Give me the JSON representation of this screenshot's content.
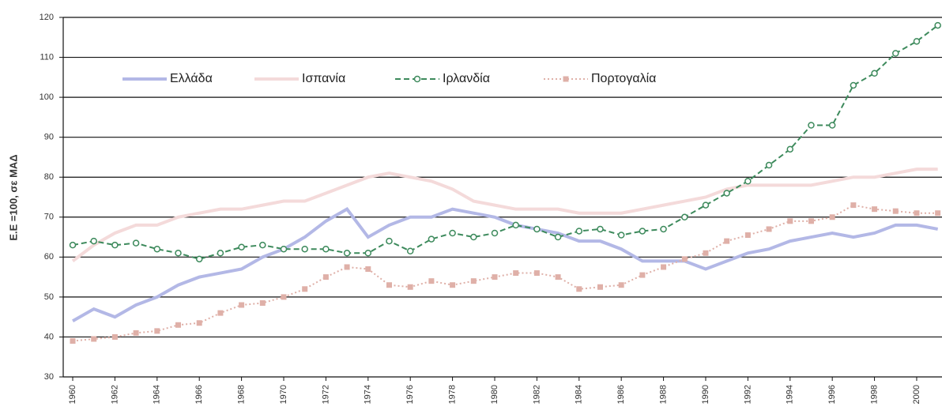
{
  "chart_data": {
    "type": "line",
    "y_label": "Ε.Ε =100, σε ΜΑΔ",
    "x": [
      1960,
      1961,
      1962,
      1963,
      1964,
      1965,
      1966,
      1967,
      1968,
      1969,
      1970,
      1971,
      1972,
      1973,
      1974,
      1975,
      1976,
      1977,
      1978,
      1979,
      1980,
      1981,
      1982,
      1983,
      1984,
      1985,
      1986,
      1987,
      1988,
      1989,
      1990,
      1991,
      1992,
      1993,
      1994,
      1995,
      1996,
      1997,
      1998,
      1999,
      2000,
      2001
    ],
    "xlim": [
      1959.55,
      2001.2
    ],
    "xticks": [
      1960,
      1962,
      1964,
      1966,
      1968,
      1970,
      1972,
      1974,
      1976,
      1978,
      1980,
      1982,
      1984,
      1986,
      1988,
      1990,
      1992,
      1994,
      1996,
      1998,
      2000
    ],
    "ylim": [
      30,
      120
    ],
    "yticks": [
      30,
      40,
      50,
      60,
      70,
      80,
      90,
      100,
      110,
      120
    ],
    "grid": true,
    "legend": "top-left",
    "series": [
      {
        "name": "Ελλάδα",
        "color": "#b3b8e6",
        "style": "solid",
        "marker": "none",
        "values": [
          44,
          47,
          45,
          48,
          50,
          53,
          55,
          56,
          57,
          60,
          62,
          65,
          69,
          72,
          65,
          68,
          70,
          70,
          72,
          71,
          70,
          68,
          67,
          66,
          64,
          64,
          62,
          59,
          59,
          59,
          57,
          59,
          61,
          62,
          64,
          65,
          66,
          65,
          66,
          68,
          68,
          67
        ]
      },
      {
        "name": "Ισπανία",
        "color": "#f4dada",
        "style": "solid",
        "marker": "none",
        "values": [
          59,
          63,
          66,
          68,
          68,
          70,
          71,
          72,
          72,
          73,
          74,
          74,
          76,
          78,
          80,
          81,
          80,
          79,
          77,
          74,
          73,
          72,
          72,
          72,
          71,
          71,
          71,
          72,
          73,
          74,
          75,
          77,
          78,
          78,
          78,
          78,
          79,
          80,
          80,
          81,
          82,
          82
        ]
      },
      {
        "name": "Ιρλανδία",
        "color": "#3d8a5c",
        "style": "dashed",
        "marker": "circle",
        "values": [
          63,
          64,
          63,
          63.5,
          62,
          61,
          59.5,
          61,
          62.5,
          63,
          62,
          62,
          62,
          61,
          61,
          64,
          61.5,
          64.5,
          66,
          65,
          66,
          68,
          67,
          65,
          66.5,
          67,
          65.5,
          66.5,
          67,
          70,
          73,
          76,
          79,
          83,
          87,
          93,
          93,
          103,
          106,
          111,
          114,
          118
        ]
      },
      {
        "name": "Πορτογαλία",
        "color": "#dfb0a8",
        "style": "dotted",
        "marker": "square",
        "values": [
          39,
          39.5,
          40,
          41,
          41.5,
          43,
          43.5,
          46,
          48,
          48.5,
          50,
          52,
          55,
          57.5,
          57,
          53,
          52.5,
          54,
          53,
          54,
          55,
          56,
          56,
          55,
          52,
          52.5,
          53,
          55.5,
          57.5,
          59.5,
          61,
          64,
          65.5,
          67,
          69,
          69,
          70,
          73,
          72,
          71.5,
          71,
          71
        ]
      }
    ]
  }
}
